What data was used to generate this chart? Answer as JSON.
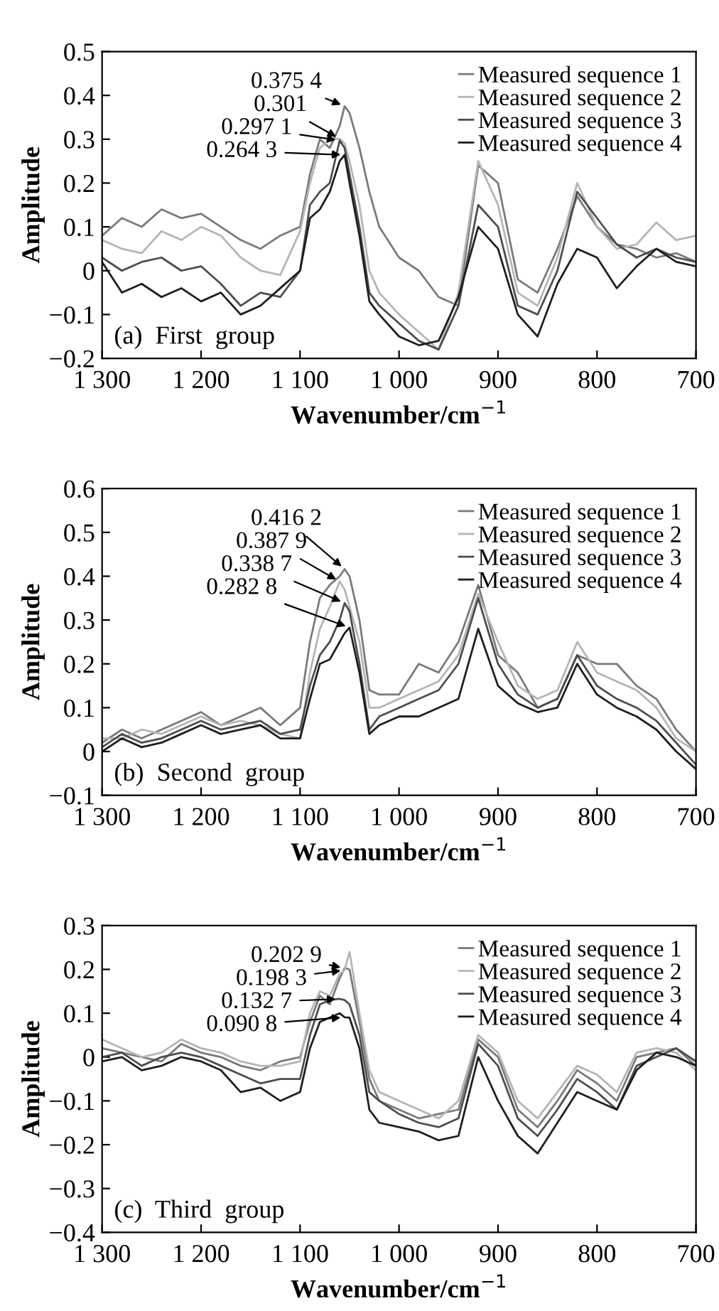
{
  "chart_data": [
    {
      "type": "line",
      "xlabel": "Wavenumber/cm$^{−1}$",
      "ylabel": "Amplitude",
      "legend": "top right",
      "x": [
        1300,
        1280,
        1260,
        1240,
        1220,
        1200,
        1180,
        1160,
        1140,
        1120,
        1100,
        1090,
        1080,
        1070,
        1060,
        1055,
        1050,
        1040,
        1030,
        1020,
        1000,
        980,
        960,
        940,
        920,
        900,
        880,
        860,
        840,
        820,
        800,
        780,
        760,
        740,
        720,
        700
      ],
      "xlim": [
        1300,
        700
      ],
      "xticks": [
        {
          "value": 1300,
          "label": "1 300"
        },
        {
          "value": 1200,
          "label": "1 200"
        },
        {
          "value": 1100,
          "label": "1 100"
        },
        {
          "value": 1000,
          "label": "1 000"
        },
        900,
        800,
        700
      ],
      "ylim": [
        -0.2,
        0.5
      ],
      "yticks": [
        {
          "value": -0.2,
          "label": "−0.2"
        },
        {
          "value": -0.1,
          "label": "−0.1"
        },
        0,
        0.1,
        0.2,
        0.3,
        0.4,
        0.5
      ],
      "series": [
        {
          "name": "Measured sequence 1",
          "color": "#7a7a7a",
          "values": [
            0.08,
            0.12,
            0.1,
            0.14,
            0.12,
            0.13,
            0.1,
            0.07,
            0.05,
            0.08,
            0.1,
            0.22,
            0.3,
            0.28,
            0.33,
            0.3754,
            0.36,
            0.28,
            0.18,
            0.1,
            0.03,
            0.0,
            -0.06,
            -0.08,
            0.24,
            0.2,
            -0.02,
            -0.05,
            0.05,
            0.17,
            0.1,
            0.06,
            0.05,
            0.03,
            0.04,
            0.02
          ]
        },
        {
          "name": "Measured sequence 2",
          "color": "#b5b5b5",
          "values": [
            0.07,
            0.05,
            0.04,
            0.09,
            0.07,
            0.1,
            0.08,
            0.03,
            0.0,
            -0.01,
            0.09,
            0.2,
            0.28,
            0.3,
            0.301,
            0.29,
            0.25,
            0.15,
            0.0,
            -0.05,
            -0.1,
            -0.14,
            -0.18,
            -0.05,
            0.25,
            0.15,
            -0.05,
            -0.08,
            0.03,
            0.2,
            0.1,
            0.05,
            0.06,
            0.11,
            0.07,
            0.08
          ]
        },
        {
          "name": "Measured sequence 3",
          "color": "#4d4d4d",
          "values": [
            0.03,
            0.0,
            0.02,
            0.03,
            0.0,
            0.01,
            -0.03,
            -0.08,
            -0.05,
            -0.06,
            0.0,
            0.15,
            0.18,
            0.2,
            0.2971,
            0.28,
            0.22,
            0.1,
            -0.05,
            -0.08,
            -0.12,
            -0.16,
            -0.18,
            -0.08,
            0.15,
            0.1,
            -0.08,
            -0.1,
            0.0,
            0.18,
            0.12,
            0.06,
            0.03,
            0.05,
            0.03,
            0.02
          ]
        },
        {
          "name": "Measured sequence 4",
          "color": "#1e1e1e",
          "values": [
            0.02,
            -0.05,
            -0.03,
            -0.06,
            -0.04,
            -0.07,
            -0.05,
            -0.1,
            -0.08,
            -0.04,
            0.0,
            0.12,
            0.14,
            0.18,
            0.25,
            0.2643,
            0.2,
            0.08,
            -0.07,
            -0.1,
            -0.15,
            -0.17,
            -0.16,
            -0.06,
            0.1,
            0.05,
            -0.1,
            -0.15,
            -0.03,
            0.05,
            0.03,
            -0.04,
            0.01,
            0.05,
            0.02,
            0.01
          ]
        }
      ],
      "annotations": [
        {
          "text": "0.375 4",
          "x": 1055,
          "y": 0.3754
        },
        {
          "text": "0.301",
          "x": 1060,
          "y": 0.301
        },
        {
          "text": "0.297 1",
          "x": 1060,
          "y": 0.2971
        },
        {
          "text": "0.264 3",
          "x": 1055,
          "y": 0.2643
        },
        "(a)  First  group"
      ]
    },
    {
      "type": "line",
      "xlabel": "Wavenumber/cm$^{−1}$",
      "ylabel": "Amplitude",
      "legend": "top right",
      "x": [
        1300,
        1280,
        1260,
        1240,
        1220,
        1200,
        1180,
        1160,
        1140,
        1120,
        1100,
        1090,
        1080,
        1070,
        1060,
        1055,
        1050,
        1040,
        1030,
        1020,
        1000,
        980,
        960,
        940,
        920,
        900,
        880,
        860,
        840,
        820,
        800,
        780,
        760,
        740,
        720,
        700
      ],
      "xlim": [
        1300,
        700
      ],
      "xticks": [
        {
          "value": 1300,
          "label": "1 300"
        },
        {
          "value": 1200,
          "label": "1 200"
        },
        {
          "value": 1100,
          "label": "1 100"
        },
        {
          "value": 1000,
          "label": "1 000"
        },
        900,
        800,
        700
      ],
      "ylim": [
        -0.1,
        0.6
      ],
      "yticks": [
        {
          "value": -0.1,
          "label": "−0.1"
        },
        0,
        0.1,
        0.2,
        0.3,
        0.4,
        0.5,
        0.6
      ],
      "series": [
        {
          "name": "Measured sequence 1",
          "color": "#7a7a7a",
          "values": [
            0.02,
            0.05,
            0.03,
            0.05,
            0.07,
            0.09,
            0.06,
            0.08,
            0.1,
            0.06,
            0.1,
            0.25,
            0.35,
            0.38,
            0.4,
            0.4162,
            0.4,
            0.3,
            0.14,
            0.13,
            0.13,
            0.2,
            0.18,
            0.25,
            0.38,
            0.22,
            0.18,
            0.1,
            0.12,
            0.22,
            0.2,
            0.2,
            0.15,
            0.12,
            0.05,
            0.0
          ]
        },
        {
          "name": "Measured sequence 2",
          "color": "#b5b5b5",
          "values": [
            0.03,
            0.03,
            0.05,
            0.04,
            0.06,
            0.08,
            0.06,
            0.07,
            0.06,
            0.04,
            0.03,
            0.18,
            0.28,
            0.33,
            0.3879,
            0.37,
            0.33,
            0.25,
            0.1,
            0.1,
            0.12,
            0.14,
            0.16,
            0.22,
            0.36,
            0.25,
            0.15,
            0.12,
            0.14,
            0.25,
            0.18,
            0.16,
            0.14,
            0.1,
            0.03,
            0.0
          ]
        },
        {
          "name": "Measured sequence 3",
          "color": "#4d4d4d",
          "values": [
            0.01,
            0.04,
            0.02,
            0.03,
            0.05,
            0.07,
            0.05,
            0.06,
            0.07,
            0.04,
            0.05,
            0.15,
            0.22,
            0.25,
            0.3,
            0.3387,
            0.32,
            0.2,
            0.05,
            0.08,
            0.1,
            0.12,
            0.14,
            0.2,
            0.35,
            0.2,
            0.13,
            0.1,
            0.12,
            0.22,
            0.15,
            0.12,
            0.1,
            0.07,
            0.02,
            -0.03
          ]
        },
        {
          "name": "Measured sequence 4",
          "color": "#1e1e1e",
          "values": [
            0.0,
            0.03,
            0.01,
            0.02,
            0.04,
            0.06,
            0.04,
            0.05,
            0.06,
            0.03,
            0.03,
            0.12,
            0.2,
            0.21,
            0.25,
            0.27,
            0.2828,
            0.18,
            0.04,
            0.06,
            0.08,
            0.08,
            0.1,
            0.12,
            0.28,
            0.15,
            0.11,
            0.09,
            0.1,
            0.2,
            0.13,
            0.1,
            0.08,
            0.05,
            0.0,
            -0.04
          ]
        }
      ],
      "annotations": [
        {
          "text": "0.416 2",
          "x": 1055,
          "y": 0.4162
        },
        {
          "text": "0.387 9",
          "x": 1060,
          "y": 0.3879
        },
        {
          "text": "0.338 7",
          "x": 1055,
          "y": 0.3387
        },
        {
          "text": "0.282 8",
          "x": 1050,
          "y": 0.2828
        },
        "(b)  Second  group"
      ]
    },
    {
      "type": "line",
      "xlabel": "Wavenumber/cm$^{−1}$",
      "ylabel": "Amplitude",
      "legend": "top right",
      "x": [
        1300,
        1280,
        1260,
        1240,
        1220,
        1200,
        1180,
        1160,
        1140,
        1120,
        1100,
        1090,
        1080,
        1070,
        1060,
        1055,
        1050,
        1040,
        1030,
        1020,
        1000,
        980,
        960,
        940,
        920,
        900,
        880,
        860,
        840,
        820,
        800,
        780,
        760,
        740,
        720,
        700
      ],
      "xlim": [
        1300,
        700
      ],
      "xticks": [
        {
          "value": 1300,
          "label": "1 300"
        },
        {
          "value": 1200,
          "label": "1 200"
        },
        {
          "value": 1100,
          "label": "1 100"
        },
        {
          "value": 1000,
          "label": "1 000"
        },
        900,
        800,
        700
      ],
      "ylim": [
        -0.4,
        0.3
      ],
      "yticks": [
        {
          "value": -0.4,
          "label": "−0.4"
        },
        {
          "value": -0.3,
          "label": "−0.3"
        },
        {
          "value": -0.2,
          "label": "−0.2"
        },
        {
          "value": -0.1,
          "label": "−0.1"
        },
        0,
        0.1,
        0.2,
        0.3
      ],
      "series": [
        {
          "name": "Measured sequence 1",
          "color": "#7a7a7a",
          "values": [
            0.02,
            0.01,
            0.0,
            -0.01,
            0.03,
            0.01,
            0.0,
            -0.02,
            -0.03,
            -0.01,
            0.0,
            0.08,
            0.14,
            0.12,
            0.18,
            0.2029,
            0.2,
            0.08,
            -0.05,
            -0.1,
            -0.12,
            -0.14,
            -0.13,
            -0.12,
            0.04,
            0.0,
            -0.12,
            -0.16,
            -0.1,
            -0.03,
            -0.06,
            -0.1,
            0.0,
            0.01,
            0.02,
            -0.02
          ]
        },
        {
          "name": "Measured sequence 2",
          "color": "#b5b5b5",
          "values": [
            0.04,
            0.02,
            0.0,
            0.01,
            0.04,
            0.02,
            0.01,
            -0.01,
            -0.02,
            -0.02,
            -0.01,
            0.1,
            0.15,
            0.14,
            0.19,
            0.1983,
            0.24,
            0.1,
            -0.03,
            -0.08,
            -0.1,
            -0.12,
            -0.14,
            -0.1,
            0.05,
            0.01,
            -0.1,
            -0.14,
            -0.08,
            -0.02,
            -0.04,
            -0.08,
            0.01,
            0.02,
            0.01,
            -0.03
          ]
        },
        {
          "name": "Measured sequence 3",
          "color": "#4d4d4d",
          "values": [
            0.0,
            0.01,
            -0.02,
            0.0,
            0.01,
            0.0,
            -0.02,
            -0.04,
            -0.06,
            -0.05,
            -0.05,
            0.05,
            0.12,
            0.13,
            0.1327,
            0.13,
            0.12,
            0.05,
            -0.08,
            -0.1,
            -0.13,
            -0.15,
            -0.16,
            -0.14,
            0.03,
            -0.02,
            -0.14,
            -0.18,
            -0.12,
            -0.05,
            -0.08,
            -0.12,
            -0.02,
            0.0,
            0.02,
            -0.01
          ]
        },
        {
          "name": "Measured sequence 4",
          "color": "#1e1e1e",
          "values": [
            -0.01,
            0.0,
            -0.03,
            -0.02,
            0.0,
            -0.01,
            -0.03,
            -0.08,
            -0.07,
            -0.1,
            -0.08,
            0.02,
            0.08,
            0.09,
            0.1,
            0.0908,
            0.09,
            0.02,
            -0.12,
            -0.15,
            -0.16,
            -0.17,
            -0.19,
            -0.18,
            0.0,
            -0.1,
            -0.18,
            -0.22,
            -0.15,
            -0.08,
            -0.1,
            -0.12,
            -0.03,
            0.01,
            0.0,
            -0.02
          ]
        }
      ],
      "annotations": [
        {
          "text": "0.202 9",
          "x": 1055,
          "y": 0.2029
        },
        {
          "text": "0.198 3",
          "x": 1055,
          "y": 0.1983
        },
        {
          "text": "0.132 7",
          "x": 1060,
          "y": 0.1327
        },
        {
          "text": "0.090 8",
          "x": 1055,
          "y": 0.0908
        },
        "(c)  Third  group"
      ]
    }
  ]
}
